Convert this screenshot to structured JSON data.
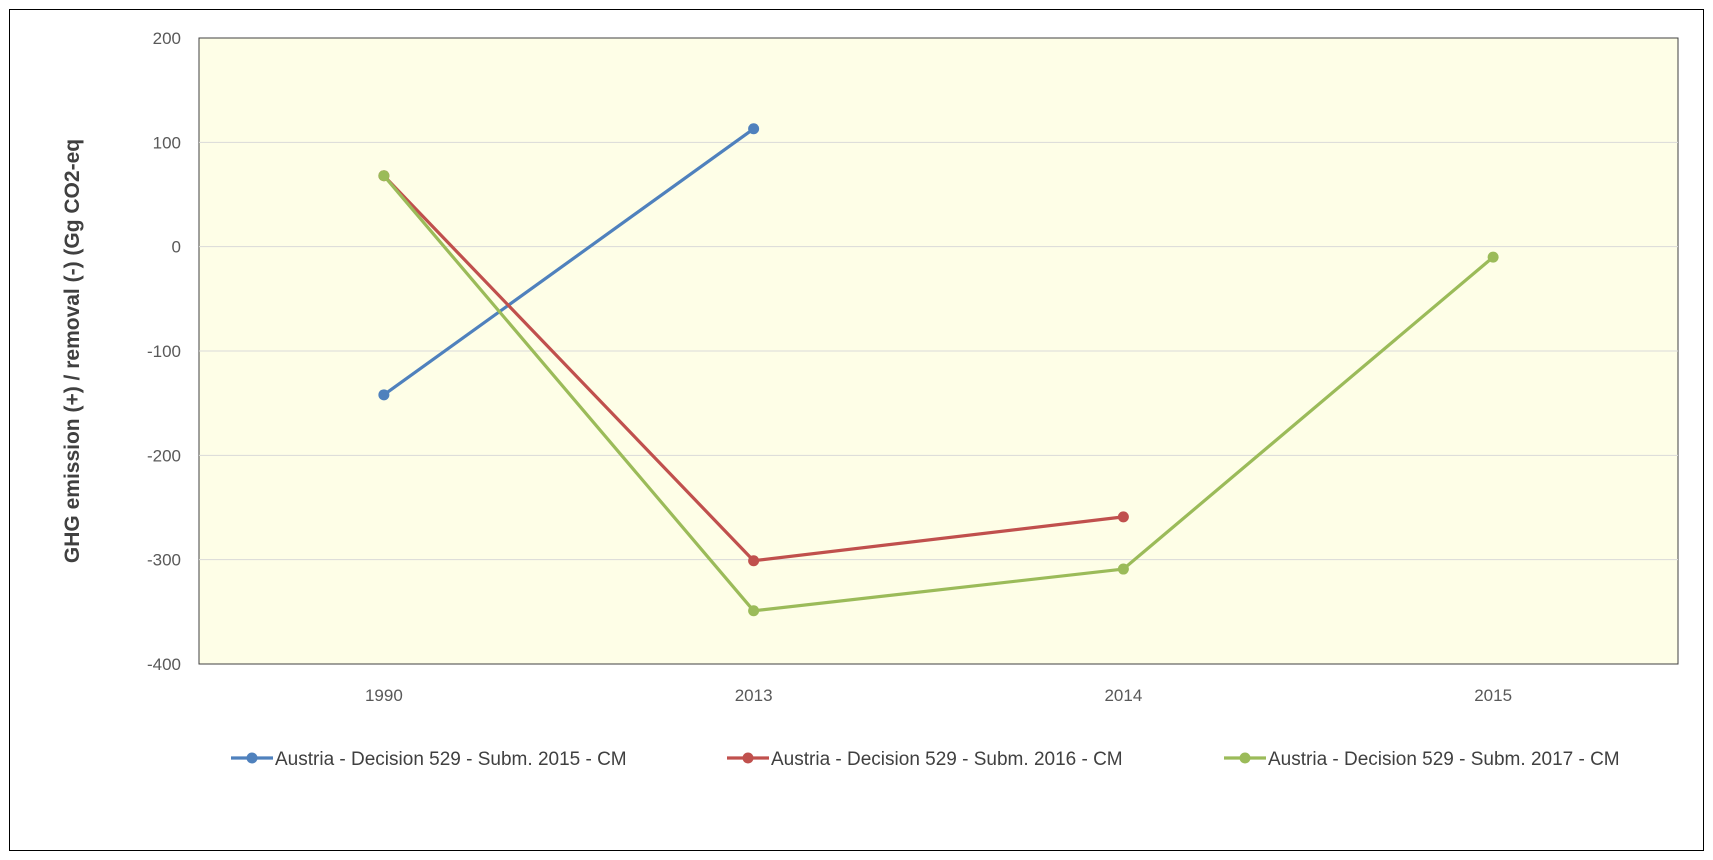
{
  "chart_data": {
    "type": "line",
    "title": "",
    "xlabel": "",
    "ylabel": "GHG emission (+) / removal (-) (Gg CO2-eq",
    "categories": [
      "1990",
      "2013",
      "2014",
      "2015"
    ],
    "ylim": [
      -400,
      200
    ],
    "yticks": [
      200,
      100,
      0,
      -100,
      -200,
      -300,
      -400
    ],
    "grid": true,
    "legend_position": "bottom",
    "plot_background": "#FEFEE7",
    "series": [
      {
        "name": "Austria - Decision 529 - Subm. 2015 - CM",
        "color": "#4F81BD",
        "values": [
          -142,
          113,
          null,
          null
        ]
      },
      {
        "name": "Austria - Decision 529 - Subm. 2016 - CM",
        "color": "#C0504D",
        "values": [
          68,
          -301,
          -259,
          null
        ]
      },
      {
        "name": "Austria - Decision 529 - Subm. 2017 - CM",
        "color": "#9BBB59",
        "values": [
          68,
          -349,
          -309,
          -10
        ]
      }
    ]
  }
}
